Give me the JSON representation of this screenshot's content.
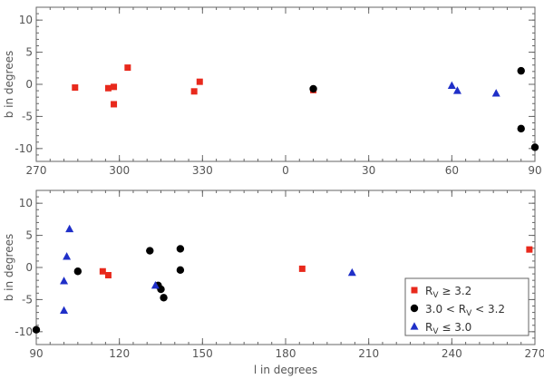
{
  "colors": {
    "axis": "#666666",
    "red_square": "#e8291c",
    "black_circle": "#000000",
    "blue_triangle": "#1f2fc8"
  },
  "chart_data": [
    {
      "type": "scatter",
      "panel": "top",
      "title": "",
      "xlabel": "",
      "ylabel": "b in degrees",
      "xlim": [
        270,
        450
      ],
      "xticks": [
        270,
        300,
        330,
        360,
        390,
        420,
        450
      ],
      "xticklabels": [
        "270",
        "300",
        "330",
        "0",
        "30",
        "60",
        "90"
      ],
      "ylim": [
        -12,
        12
      ],
      "yticks": [
        -10,
        -5,
        0,
        5,
        10
      ],
      "yticklabels": [
        "-10",
        "-5",
        "0",
        "5",
        "10"
      ],
      "grid": false,
      "series": [
        {
          "marker": "square",
          "color": "#e8291c",
          "points": [
            [
              284,
              -0.5
            ],
            [
              296,
              -0.6
            ],
            [
              298,
              -0.4
            ],
            [
              298,
              -3.1
            ],
            [
              303,
              2.6
            ],
            [
              327,
              -1.1
            ],
            [
              329,
              0.4
            ],
            [
              370,
              -0.9
            ]
          ]
        },
        {
          "marker": "circle",
          "color": "#000000",
          "points": [
            [
              370,
              -0.7
            ],
            [
              445,
              2.1
            ],
            [
              445,
              -6.9
            ],
            [
              450,
              -9.8
            ]
          ]
        },
        {
          "marker": "triangle",
          "color": "#1f2fc8",
          "points": [
            [
              420,
              -0.2
            ],
            [
              422,
              -1.0
            ],
            [
              436,
              -1.4
            ]
          ]
        }
      ]
    },
    {
      "type": "scatter",
      "panel": "bottom",
      "title": "",
      "xlabel": "l in degrees",
      "ylabel": "b in degrees",
      "xlim": [
        90,
        270
      ],
      "xticks": [
        90,
        120,
        150,
        180,
        210,
        240,
        270
      ],
      "xticklabels": [
        "90",
        "120",
        "150",
        "180",
        "210",
        "240",
        "270"
      ],
      "ylim": [
        -12,
        12
      ],
      "yticks": [
        -10,
        -5,
        0,
        5,
        10
      ],
      "yticklabels": [
        "-10",
        "-5",
        "0",
        "5",
        "10"
      ],
      "grid": false,
      "legend": {
        "placement": "bottom-right",
        "entries": [
          {
            "marker": "square",
            "color": "#e8291c",
            "label_main": "R",
            "label_sub": "V",
            "label_rest": " ≥ 3.2"
          },
          {
            "marker": "circle",
            "color": "#000000",
            "label_pre": "3.0 < R",
            "label_sub": "V",
            "label_rest": " < 3.2"
          },
          {
            "marker": "triangle",
            "color": "#1f2fc8",
            "label_main": "R",
            "label_sub": "V",
            "label_rest": " ≤ 3.0"
          }
        ]
      },
      "series": [
        {
          "marker": "square",
          "color": "#e8291c",
          "points": [
            [
              114,
              -0.6
            ],
            [
              116,
              -1.2
            ],
            [
              186,
              -0.2
            ],
            [
              268,
              2.8
            ]
          ]
        },
        {
          "marker": "circle",
          "color": "#000000",
          "points": [
            [
              90,
              -9.7
            ],
            [
              105,
              -0.6
            ],
            [
              131,
              2.6
            ],
            [
              134,
              -2.8
            ],
            [
              135,
              -3.4
            ],
            [
              136,
              -4.7
            ],
            [
              142,
              2.9
            ],
            [
              142,
              -0.4
            ]
          ]
        },
        {
          "marker": "triangle",
          "color": "#1f2fc8",
          "points": [
            [
              100,
              -2.1
            ],
            [
              100,
              -6.7
            ],
            [
              101,
              1.7
            ],
            [
              102,
              6.0
            ],
            [
              133,
              -2.8
            ],
            [
              204,
              -0.8
            ]
          ]
        }
      ]
    }
  ]
}
